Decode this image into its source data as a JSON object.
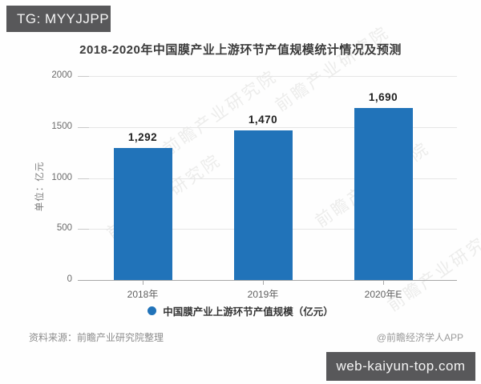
{
  "overlay": {
    "tg_badge": "TG: MYYJJPP",
    "site_badge": "web-kaiyun-top.com"
  },
  "chart_data": {
    "type": "bar",
    "title": "2018-2020年中国膜产业上游环节产值规模统计情况及预测",
    "categories": [
      "2018年",
      "2019年",
      "2020年E"
    ],
    "values": [
      1292,
      1470,
      1690
    ],
    "value_labels": [
      "1,292",
      "1,470",
      "1,690"
    ],
    "xlabel": "",
    "ylabel": "单位：亿元",
    "ylim": [
      0,
      2000
    ],
    "yticks": [
      0,
      500,
      1000,
      1500,
      2000
    ],
    "grid": true,
    "legend_label": "中国膜产业上游环节产值规模（亿元）",
    "legend_position": "bottom",
    "bar_color": "#2173b9"
  },
  "watermark": {
    "text": "前瞻产业研究院"
  },
  "footer": {
    "source": "资料来源：前瞻产业研究院整理",
    "credit": "@前瞻经济学人APP"
  },
  "colors": {
    "bar": "#2173b9",
    "badge_bg": "#58585a",
    "gridline": "#e6e6e6",
    "axis": "#a8a8a8"
  }
}
